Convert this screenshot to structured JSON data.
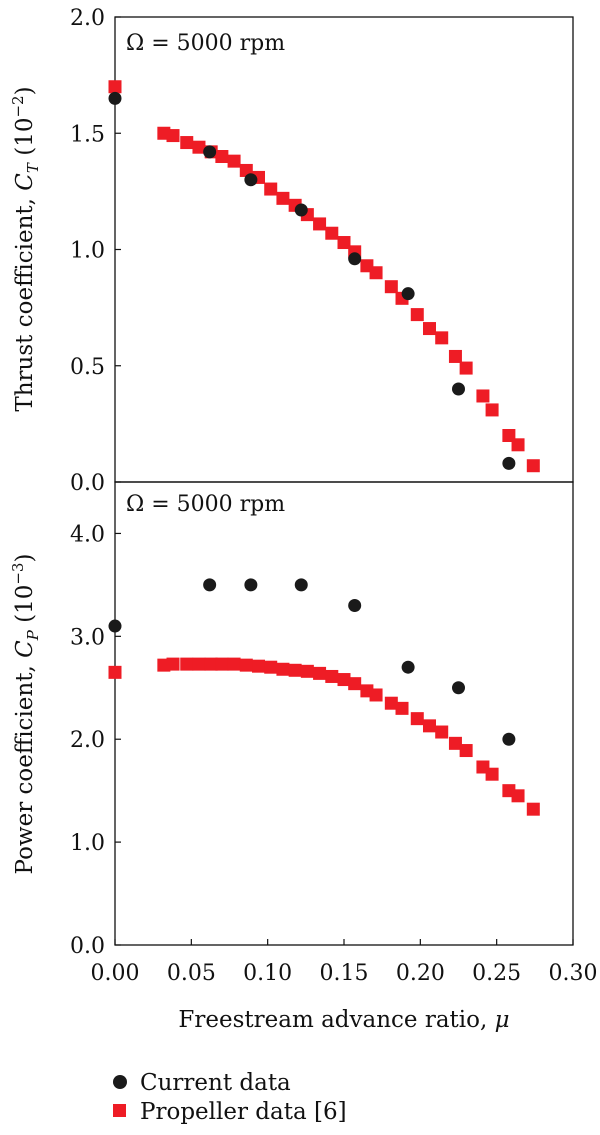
{
  "chart_data": [
    {
      "type": "scatter",
      "panel": "top",
      "annotation": "Ω = 5000 rpm",
      "ylabel": {
        "prefix": "Thrust coefficient, ",
        "symbol": "C",
        "subscript": "T",
        "unit_open": " (10",
        "exponent": "−2",
        "unit_close": ")"
      },
      "xlim": [
        0,
        0.3
      ],
      "ylim": [
        0,
        2.0
      ],
      "yticks": [
        "0.0",
        "0.5",
        "1.0",
        "1.5",
        "2.0"
      ],
      "grid": false,
      "series": [
        {
          "name": "Current data",
          "marker": "circle",
          "color": "#1a1a1a",
          "x": [
            0.0,
            0.062,
            0.089,
            0.122,
            0.157,
            0.192,
            0.225,
            0.258
          ],
          "y": [
            1.65,
            1.42,
            1.3,
            1.17,
            0.96,
            0.81,
            0.4,
            0.08
          ]
        },
        {
          "name": "Propeller data [6]",
          "marker": "square",
          "color": "#ee1c25",
          "x": [
            0.0,
            0.032,
            0.038,
            0.047,
            0.055,
            0.063,
            0.07,
            0.078,
            0.086,
            0.094,
            0.102,
            0.11,
            0.118,
            0.126,
            0.134,
            0.142,
            0.15,
            0.157,
            0.165,
            0.171,
            0.181,
            0.188,
            0.198,
            0.206,
            0.214,
            0.223,
            0.23,
            0.241,
            0.247,
            0.258,
            0.264,
            0.274
          ],
          "y": [
            1.7,
            1.5,
            1.49,
            1.46,
            1.44,
            1.42,
            1.4,
            1.38,
            1.34,
            1.31,
            1.26,
            1.22,
            1.19,
            1.15,
            1.11,
            1.07,
            1.03,
            0.99,
            0.93,
            0.9,
            0.84,
            0.79,
            0.72,
            0.66,
            0.62,
            0.54,
            0.49,
            0.37,
            0.31,
            0.2,
            0.16,
            0.07
          ]
        }
      ]
    },
    {
      "type": "scatter",
      "panel": "bottom",
      "annotation": "Ω = 5000 rpm",
      "ylabel": {
        "prefix": "Power coefficient, ",
        "symbol": "C",
        "subscript": "P",
        "unit_open": " (10",
        "exponent": "−3",
        "unit_close": ")"
      },
      "xlabel": {
        "prefix": "Freestream advance ratio, ",
        "symbol": "μ"
      },
      "xlim": [
        0,
        0.3
      ],
      "ylim": [
        0,
        4.5
      ],
      "xticks": [
        "0.00",
        "0.05",
        "0.10",
        "0.15",
        "0.20",
        "0.25",
        "0.30"
      ],
      "yticks": [
        "0.0",
        "1.0",
        "2.0",
        "3.0",
        "4.0"
      ],
      "grid": false,
      "series": [
        {
          "name": "Current data",
          "marker": "circle",
          "color": "#1a1a1a",
          "x": [
            0.0,
            0.062,
            0.089,
            0.122,
            0.157,
            0.192,
            0.225,
            0.258
          ],
          "y": [
            3.1,
            3.5,
            3.5,
            3.5,
            3.3,
            2.7,
            2.5,
            2.0
          ]
        },
        {
          "name": "Propeller data [6]",
          "marker": "square",
          "color": "#ee1c25",
          "x": [
            0.0,
            0.032,
            0.038,
            0.047,
            0.055,
            0.063,
            0.07,
            0.078,
            0.086,
            0.094,
            0.102,
            0.11,
            0.118,
            0.126,
            0.134,
            0.142,
            0.15,
            0.157,
            0.165,
            0.171,
            0.181,
            0.188,
            0.198,
            0.206,
            0.214,
            0.223,
            0.23,
            0.241,
            0.247,
            0.258,
            0.264,
            0.274
          ],
          "y": [
            2.65,
            2.72,
            2.73,
            2.73,
            2.73,
            2.73,
            2.73,
            2.73,
            2.72,
            2.71,
            2.7,
            2.68,
            2.67,
            2.66,
            2.64,
            2.61,
            2.58,
            2.54,
            2.47,
            2.43,
            2.35,
            2.3,
            2.2,
            2.13,
            2.07,
            1.96,
            1.89,
            1.73,
            1.66,
            1.5,
            1.45,
            1.32
          ]
        }
      ]
    }
  ],
  "legend": {
    "placement": "bottom-left",
    "items": [
      {
        "label": "Current data",
        "marker": "circle",
        "color": "#1a1a1a"
      },
      {
        "label": "Propeller data [6]",
        "marker": "square",
        "color": "#ee1c25"
      }
    ]
  }
}
